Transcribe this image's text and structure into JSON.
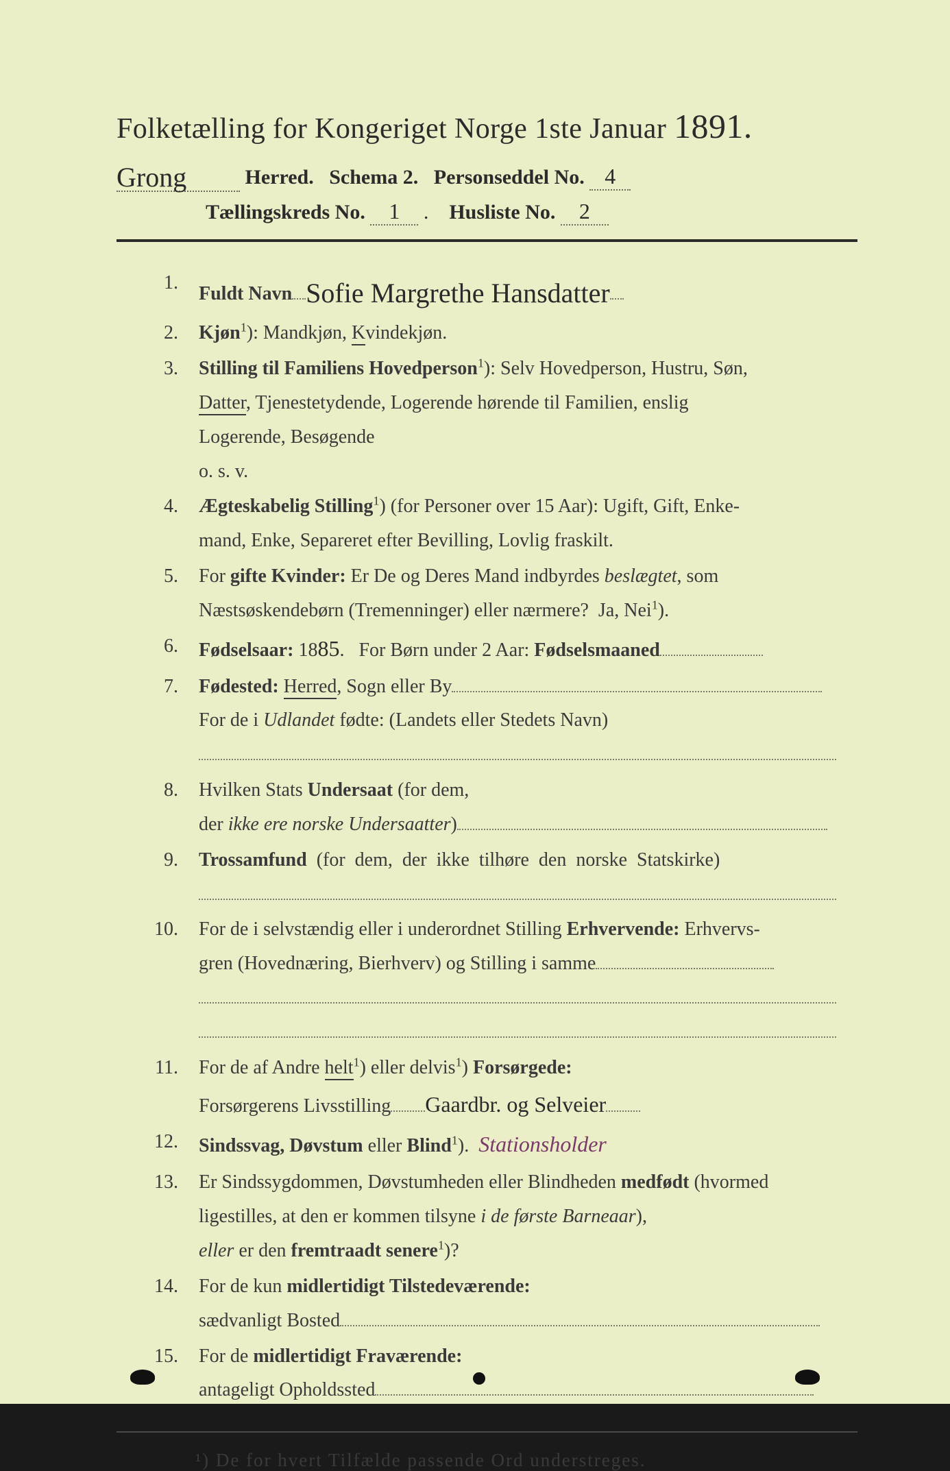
{
  "background_color": "#eceec7",
  "text_color": "#3a3a3a",
  "handwriting_color": "#2a2a2a",
  "purple_ink_color": "#7a3a6a",
  "title": {
    "text": "Folketælling for Kongeriget Norge 1ste Januar",
    "year": "1891.",
    "fontsize": 42
  },
  "header": {
    "herred_hw": "Grong",
    "herred_label": "Herred.",
    "schema": "Schema 2.",
    "personseddel_label": "Personseddel No.",
    "personseddel_no": "4",
    "kreds_label": "Tællingskreds No.",
    "kreds_no": "1",
    "husliste_label": "Husliste No.",
    "husliste_no": "2"
  },
  "items": [
    {
      "n": "1.",
      "label": "Fuldt Navn",
      "hw": "Sofie Margrethe Hansdatter"
    },
    {
      "n": "2.",
      "html": "<span class='bold'>Kjøn</span><span class='sup'>1</span>): Mandkjøn, <span class='u'>K</span>vindekjøn."
    },
    {
      "n": "3.",
      "html": "<span class='bold'>Stilling til Familiens Hovedperson</span><span class='sup'>1</span>): Selv Hovedperson, Hustru, Søn,<br><span class='u'>Datter</span>, Tjenestetydende, Logerende hørende til Familien, enslig<br>Logerende, Besøgende<br>o. s. v."
    },
    {
      "n": "4.",
      "html": "<span class='bold'>Ægteskabelig Stilling</span><span class='sup'>1</span>) (for Personer over 15 Aar): Ugift, Gift, Enke-<br>mand, Enke, Separeret efter Bevilling, Lovlig fraskilt."
    },
    {
      "n": "5.",
      "html": "For <span class='bold'>gifte Kvinder:</span> Er De og Deres Mand indbyrdes <span class='i'>beslægtet</span>, som<br>Næstsøskendebørn (Tremenninger) eller nærmere?&nbsp;&nbsp;Ja, Nei<span class='sup'>1</span>)."
    },
    {
      "n": "6.",
      "html": "<span class='bold'>Fødselsaar:</span> 18<span class='hw-sm'>85</span>.&nbsp;&nbsp;&nbsp;For Børn under 2 Aar: <span class='bold'>Fødselsmaaned</span><span class='dots-fill' style='width:150px'></span>"
    },
    {
      "n": "7.",
      "html": "<span class='bold'>Fødested:</span> <span class='u'>Herred</span>, Sogn eller By<span class='dots-fill' style='width:540px'></span><br>For de i <span class='i'>Udlandet</span> fødte: (Landets eller Stedets Navn)<br><span class='dots-fill' style='width:930px'></span>"
    },
    {
      "n": "8.",
      "html": "Hvilken Stats <span class='bold'>Undersaat</span> (for dem,<br>der <span class='i'>ikke ere norske Undersaatter</span>)<span class='dots-fill' style='width:540px'></span>"
    },
    {
      "n": "9.",
      "html": "<span class='bold'>Trossamfund</span>&nbsp;&nbsp;(for&nbsp;&nbsp;dem,&nbsp;&nbsp;der&nbsp;&nbsp;ikke&nbsp;&nbsp;tilhøre&nbsp;&nbsp;den&nbsp;&nbsp;norske&nbsp;&nbsp;Statskirke)<br><span class='dots-fill' style='width:930px'></span>"
    },
    {
      "n": "10.",
      "html": "For de i selvstændig eller i underordnet Stilling <span class='bold'>Erhvervende:</span> Erhvervs-<br>gren (Hovednæring, Bierhverv) og Stilling i samme<span class='dots-fill' style='width:260px'></span><br><span class='dots-fill' style='width:930px'></span><br><span class='dots-fill' style='width:930px'></span>"
    },
    {
      "n": "11.",
      "html": "For de af Andre <span class='u'>helt</span><span class='sup'>1</span>) eller delvis<span class='sup'>1</span>) <span class='bold'>Forsørgede:</span><br>Forsørgerens Livsstilling<span class='dots-fill' style='width:50px'></span><span class='hw-sm'>Gaardbr. og Selveier</span><span class='dots-fill' style='width:50px'></span>"
    },
    {
      "n": "12.",
      "html": "<span class='bold'>Sindssvag, Døvstum</span> eller <span class='bold'>Blind</span><span class='sup'>1</span>).&nbsp;&nbsp;<span class='purple-hw'>Stationsholder</span>"
    },
    {
      "n": "13.",
      "html": "Er Sindssygdommen, Døvstumheden eller Blindheden <span class='bold'>medfødt</span> (hvormed<br>ligestilles, at den er kommen tilsyne <span class='i'>i de første Barneaar</span>),<br><span class='i'>eller</span> er den <span class='bold'>fremtraadt senere</span><span class='sup'>1</span>)?"
    },
    {
      "n": "14.",
      "html": "For de kun <span class='bold'>midlertidigt Tilstedeværende:</span><br>sædvanligt Bosted<span class='dots-fill' style='width:700px'></span>"
    },
    {
      "n": "15.",
      "html": "For de <span class='bold'>midlertidigt Fraværende:</span><br>antageligt Opholdssted<span class='dots-fill' style='width:640px'></span>"
    }
  ],
  "footnote": "¹) De for hvert Tilfælde passende Ord understreges."
}
